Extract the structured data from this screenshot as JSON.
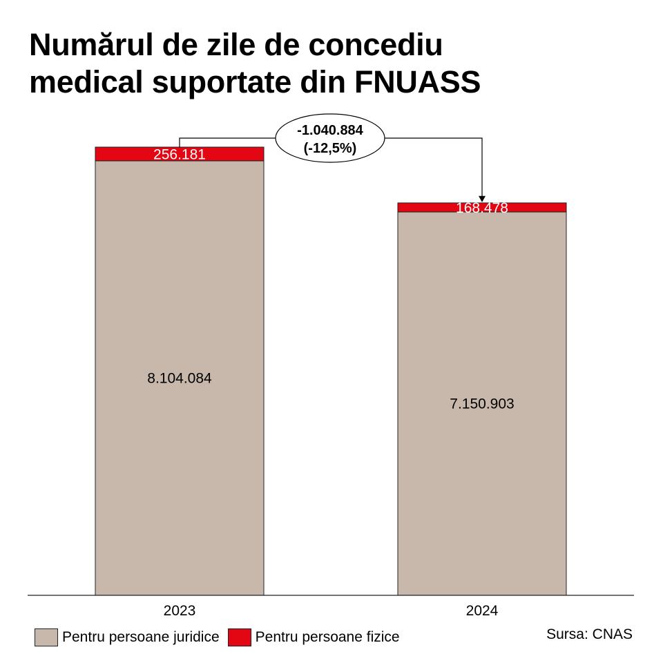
{
  "title": {
    "line1": "Numărul de zile de concediu",
    "line2": "medical suportate din FNUASS"
  },
  "chart_data": {
    "type": "bar",
    "stacked": true,
    "categories": [
      "2023",
      "2024"
    ],
    "series": [
      {
        "name": "Pentru persoane juridice",
        "color": "#c8b8ac",
        "values": [
          8104084,
          7150903
        ],
        "labels": [
          "8.104.084",
          "7.150.903"
        ]
      },
      {
        "name": "Pentru persoane fizice",
        "color": "#e30613",
        "values": [
          256181,
          168478
        ],
        "labels": [
          "256.181",
          "168.478"
        ]
      }
    ],
    "ylim": [
      0,
      8360265
    ],
    "grid": false,
    "legend_position": "bottom-left",
    "annotation": {
      "line1": "-1.040.884",
      "line2": "(-12,5%)",
      "from": "2023",
      "to": "2024"
    }
  },
  "legend": {
    "items": [
      {
        "label": "Pentru persoane juridice",
        "color": "#c8b8ac"
      },
      {
        "label": "Pentru persoane fizice",
        "color": "#e30613"
      }
    ]
  },
  "source": "Sursa: CNAS"
}
